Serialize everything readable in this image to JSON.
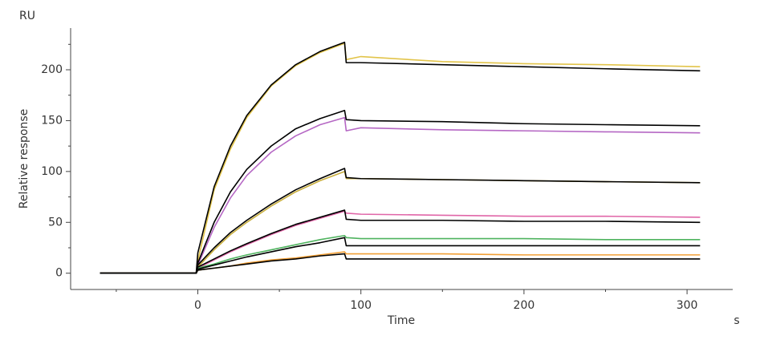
{
  "chart_data": {
    "type": "line",
    "y_unit": "RU",
    "ylabel": "Relative response",
    "xlabel": "Time",
    "x_unit": "s",
    "x": [
      -60,
      -1,
      0,
      10,
      20,
      30,
      45,
      60,
      75,
      90,
      91,
      100,
      150,
      200,
      250,
      308
    ],
    "xlim": [
      -78,
      328
    ],
    "ylim": [
      -16,
      241
    ],
    "xticks": [
      0,
      100,
      200,
      300
    ],
    "yticks": [
      0,
      50,
      100,
      150,
      200
    ],
    "x_minor_ticks": [
      -50,
      50,
      150,
      250
    ],
    "y_minor_ticks": [
      25,
      75,
      125,
      175,
      225
    ],
    "series": [
      {
        "color": "#e2c44a",
        "values": [
          0,
          0,
          12,
          82,
          122,
          153,
          184,
          204,
          217,
          226,
          210,
          213,
          208,
          206,
          205,
          203
        ]
      },
      {
        "color": "#b567c4",
        "values": [
          0,
          0,
          8,
          45,
          74,
          96,
          119,
          135,
          146,
          153,
          140,
          143,
          141,
          140,
          139,
          138
        ]
      },
      {
        "color": "#c9ae3c",
        "values": [
          0,
          0,
          6,
          23,
          38,
          50,
          66,
          80,
          91,
          100,
          93,
          93,
          92,
          91,
          90,
          89
        ]
      },
      {
        "color": "#e066a8",
        "values": [
          0,
          0,
          5,
          13,
          21,
          28,
          38,
          47,
          54,
          61,
          59,
          58,
          57,
          56,
          56,
          55
        ]
      },
      {
        "color": "#4fb35f",
        "values": [
          0,
          0,
          5,
          9,
          14,
          18,
          23,
          28,
          33,
          37,
          35,
          34,
          34,
          34,
          33,
          33
        ]
      },
      {
        "color": "#f2a037",
        "values": [
          0,
          0,
          3,
          5,
          7,
          10,
          13,
          15,
          18,
          21,
          19,
          19,
          19,
          18,
          18,
          18
        ]
      },
      {
        "color": "#000000",
        "values": [
          0,
          0,
          20,
          85,
          125,
          155,
          185,
          205,
          218,
          227,
          207,
          207,
          205,
          203,
          201,
          199
        ]
      },
      {
        "color": "#000000",
        "values": [
          0,
          0,
          10,
          50,
          80,
          102,
          125,
          142,
          152,
          160,
          151,
          150,
          149,
          147,
          146,
          145
        ]
      },
      {
        "color": "#000000",
        "values": [
          0,
          0,
          8,
          25,
          40,
          52,
          68,
          82,
          93,
          103,
          94,
          93,
          92,
          91,
          90,
          89
        ]
      },
      {
        "color": "#000000",
        "values": [
          0,
          0,
          6,
          14,
          22,
          29,
          39,
          48,
          55,
          62,
          53,
          52,
          52,
          51,
          51,
          50
        ]
      },
      {
        "color": "#000000",
        "values": [
          0,
          0,
          4,
          8,
          12,
          16,
          21,
          26,
          30,
          35,
          27,
          27,
          27,
          27,
          27,
          27
        ]
      },
      {
        "color": "#000000",
        "values": [
          0,
          0,
          3,
          5,
          7,
          9,
          12,
          14,
          17,
          19,
          14,
          14,
          14,
          14,
          14,
          14
        ]
      }
    ]
  }
}
